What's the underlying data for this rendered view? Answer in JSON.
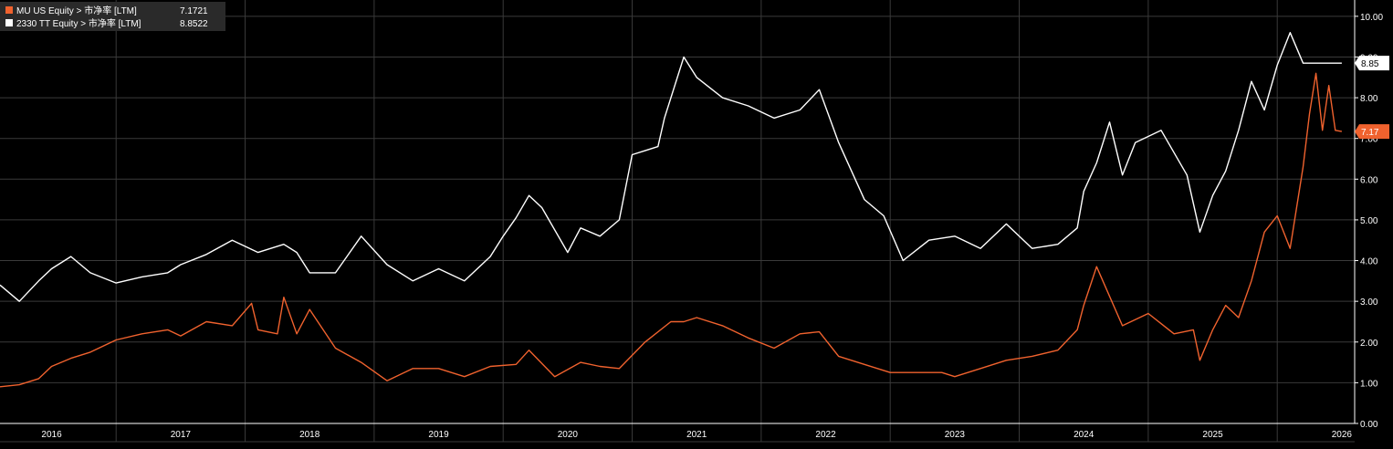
{
  "colors": {
    "background": "#000000",
    "grid": "#3a3a3a",
    "axis": "#ffffff",
    "series_mu": "#f0622e",
    "series_tsmc": "#ffffff",
    "legend_bg": "#2a2a2a"
  },
  "chart_data": {
    "type": "line",
    "xlabel": "",
    "ylabel": "",
    "xlim": [
      2015.6,
      2026.1
    ],
    "ylim": [
      0,
      10.4
    ],
    "grid": true,
    "legend_position": "top-left",
    "x_ticks": [
      {
        "value": 2016,
        "label": "2016"
      },
      {
        "value": 2017,
        "label": "2017"
      },
      {
        "value": 2018,
        "label": "2018"
      },
      {
        "value": 2019,
        "label": "2019"
      },
      {
        "value": 2020,
        "label": "2020"
      },
      {
        "value": 2021,
        "label": "2021"
      },
      {
        "value": 2022,
        "label": "2022"
      },
      {
        "value": 2023,
        "label": "2023"
      },
      {
        "value": 2024,
        "label": "2024"
      },
      {
        "value": 2025,
        "label": "2025"
      },
      {
        "value": 2026,
        "label": "2026"
      }
    ],
    "y_ticks": [
      {
        "value": 0,
        "label": "0.00"
      },
      {
        "value": 1,
        "label": "1.00"
      },
      {
        "value": 2,
        "label": "2.00"
      },
      {
        "value": 3,
        "label": "3.00"
      },
      {
        "value": 4,
        "label": "4.00"
      },
      {
        "value": 5,
        "label": "5.00"
      },
      {
        "value": 6,
        "label": "6.00"
      },
      {
        "value": 7,
        "label": "7.00"
      },
      {
        "value": 8,
        "label": "8.00"
      },
      {
        "value": 9,
        "label": "9.00"
      },
      {
        "value": 10,
        "label": "10.00"
      }
    ],
    "series": [
      {
        "name": "MU US Equity > 市净率 [LTM]",
        "last_value": "7.1721",
        "last_label": "7.17",
        "color": "#f0622e",
        "x": [
          2015.6,
          2015.75,
          2015.9,
          2016.0,
          2016.15,
          2016.3,
          2016.5,
          2016.7,
          2016.9,
          2017.0,
          2017.2,
          2017.4,
          2017.55,
          2017.6,
          2017.75,
          2017.8,
          2017.9,
          2018.0,
          2018.2,
          2018.4,
          2018.6,
          2018.8,
          2019.0,
          2019.2,
          2019.4,
          2019.6,
          2019.7,
          2019.9,
          2020.1,
          2020.25,
          2020.4,
          2020.6,
          2020.8,
          2020.9,
          2021.0,
          2021.2,
          2021.4,
          2021.6,
          2021.8,
          2021.95,
          2022.1,
          2022.3,
          2022.5,
          2022.7,
          2022.9,
          2023.0,
          2023.2,
          2023.4,
          2023.6,
          2023.8,
          2023.95,
          2024.0,
          2024.1,
          2024.3,
          2024.5,
          2024.7,
          2024.85,
          2024.9,
          2025.0,
          2025.1,
          2025.2,
          2025.3,
          2025.4,
          2025.5,
          2025.6,
          2025.7,
          2025.75,
          2025.8,
          2025.85,
          2025.9,
          2025.95,
          2026.0
        ],
        "y": [
          0.9,
          0.95,
          1.1,
          1.4,
          1.6,
          1.75,
          2.05,
          2.2,
          2.3,
          2.15,
          2.5,
          2.4,
          2.95,
          2.3,
          2.2,
          3.1,
          2.2,
          2.8,
          1.85,
          1.5,
          1.05,
          1.35,
          1.35,
          1.15,
          1.4,
          1.45,
          1.8,
          1.15,
          1.5,
          1.4,
          1.35,
          2.0,
          2.5,
          2.5,
          2.6,
          2.4,
          2.1,
          1.85,
          2.2,
          2.25,
          1.65,
          1.45,
          1.25,
          1.25,
          1.25,
          1.15,
          1.35,
          1.55,
          1.65,
          1.8,
          2.3,
          2.9,
          3.85,
          2.4,
          2.7,
          2.2,
          2.3,
          1.55,
          2.3,
          2.9,
          2.6,
          3.5,
          4.7,
          5.1,
          4.3,
          6.3,
          7.6,
          8.6,
          7.2,
          8.3,
          7.2,
          7.17
        ]
      },
      {
        "name": "2330 TT Equity > 市净率 [LTM]",
        "last_value": "8.8522",
        "last_label": "8.85",
        "color": "#ffffff",
        "x": [
          2015.6,
          2015.75,
          2015.9,
          2016.0,
          2016.15,
          2016.3,
          2016.5,
          2016.7,
          2016.9,
          2017.0,
          2017.2,
          2017.4,
          2017.6,
          2017.8,
          2017.9,
          2018.0,
          2018.2,
          2018.4,
          2018.6,
          2018.8,
          2019.0,
          2019.2,
          2019.4,
          2019.5,
          2019.6,
          2019.7,
          2019.8,
          2020.0,
          2020.1,
          2020.25,
          2020.4,
          2020.5,
          2020.6,
          2020.7,
          2020.75,
          2020.9,
          2021.0,
          2021.2,
          2021.4,
          2021.6,
          2021.8,
          2021.95,
          2022.1,
          2022.3,
          2022.45,
          2022.6,
          2022.8,
          2023.0,
          2023.2,
          2023.4,
          2023.6,
          2023.8,
          2023.95,
          2024.0,
          2024.1,
          2024.2,
          2024.3,
          2024.4,
          2024.6,
          2024.8,
          2024.9,
          2025.0,
          2025.1,
          2025.2,
          2025.3,
          2025.4,
          2025.5,
          2025.6,
          2025.7,
          2025.75,
          2025.85,
          2025.9,
          2025.95,
          2026.0
        ],
        "y": [
          3.4,
          3.0,
          3.5,
          3.8,
          4.1,
          3.7,
          3.45,
          3.6,
          3.7,
          3.9,
          4.15,
          4.5,
          4.2,
          4.4,
          4.2,
          3.7,
          3.7,
          4.6,
          3.9,
          3.5,
          3.8,
          3.5,
          4.1,
          4.6,
          5.05,
          5.6,
          5.3,
          4.2,
          4.8,
          4.6,
          5.0,
          6.6,
          6.7,
          6.8,
          7.5,
          9.0,
          8.5,
          8.0,
          7.8,
          7.5,
          7.7,
          8.2,
          6.9,
          5.5,
          5.1,
          4.0,
          4.5,
          4.6,
          4.3,
          4.9,
          4.3,
          4.4,
          4.8,
          5.7,
          6.4,
          7.4,
          6.1,
          6.9,
          7.2,
          6.1,
          4.7,
          5.6,
          6.2,
          7.2,
          8.4,
          7.7,
          8.8,
          9.6,
          8.85,
          8.85,
          8.85,
          8.85,
          8.85,
          8.85
        ]
      }
    ]
  }
}
